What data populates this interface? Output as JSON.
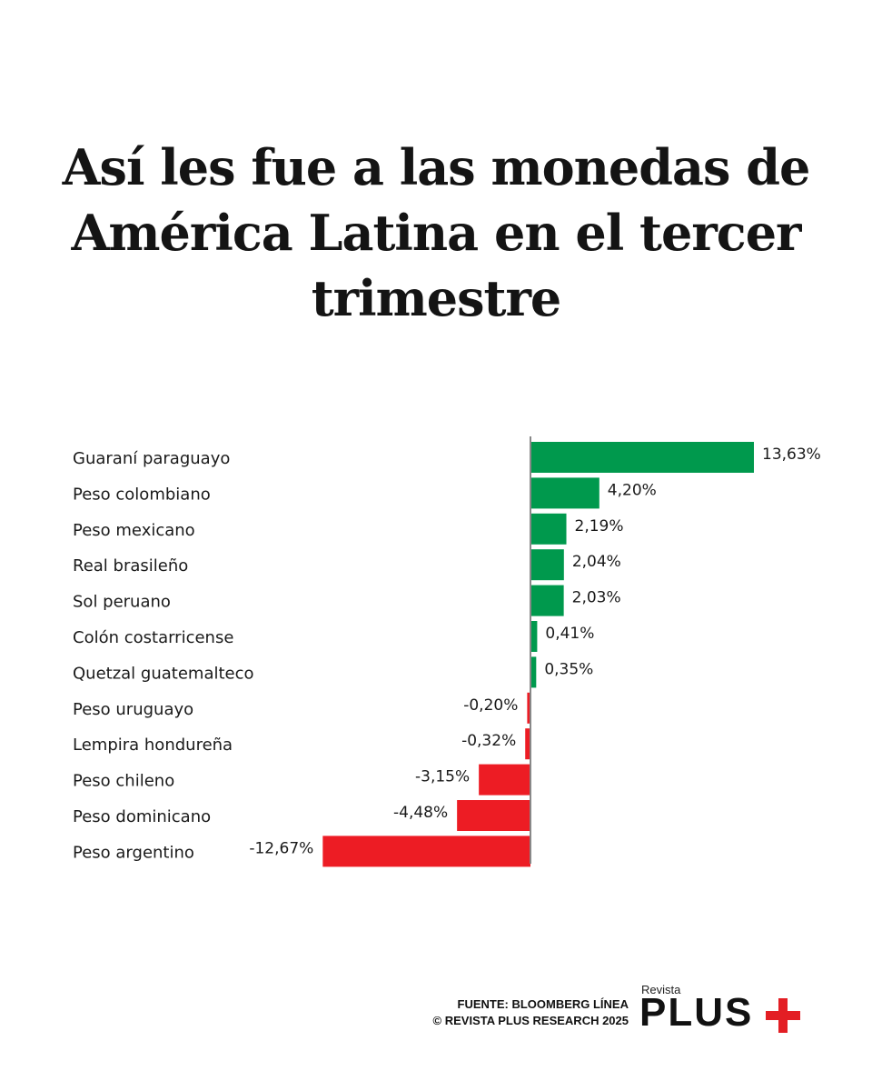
{
  "title": "Así les fue a las monedas de América Latina en el tercer trimestre",
  "footer": {
    "source": "FUENTE: BLOOMBERG LÍNEA",
    "copyright": "© REVISTA PLUS RESEARCH 2025"
  },
  "logo": {
    "small_text": "Revista",
    "word": "PLUS",
    "plus_color": "#e31e24"
  },
  "colors": {
    "positive": "#00994d",
    "negative": "#ed1c24",
    "axis": "#888888",
    "text": "#1a1a1a"
  },
  "chart_data": {
    "type": "bar",
    "orientation": "horizontal",
    "title": "Así les fue a las monedas de América Latina en el tercer trimestre",
    "categories": [
      "Guaraní paraguayo",
      "Peso colombiano",
      "Peso mexicano",
      "Real brasileño",
      "Sol peruano",
      "Colón costarricense",
      "Quetzal guatemalteco",
      "Peso uruguayo",
      "Lempira hondureña",
      "Peso chileno",
      "Peso dominicano",
      "Peso argentino"
    ],
    "values": [
      13.63,
      4.2,
      2.19,
      2.04,
      2.03,
      0.41,
      0.35,
      -0.2,
      -0.32,
      -3.15,
      -4.48,
      -12.67
    ],
    "value_labels": [
      "13,63%",
      "4,20%",
      "2,19%",
      "2,04%",
      "2,03%",
      "0,41%",
      "0,35%",
      "-0,20%",
      "-0,32%",
      "-3,15%",
      "-4,48%",
      "-12,67%"
    ],
    "unit": "%",
    "grid": false,
    "legend": "none"
  }
}
